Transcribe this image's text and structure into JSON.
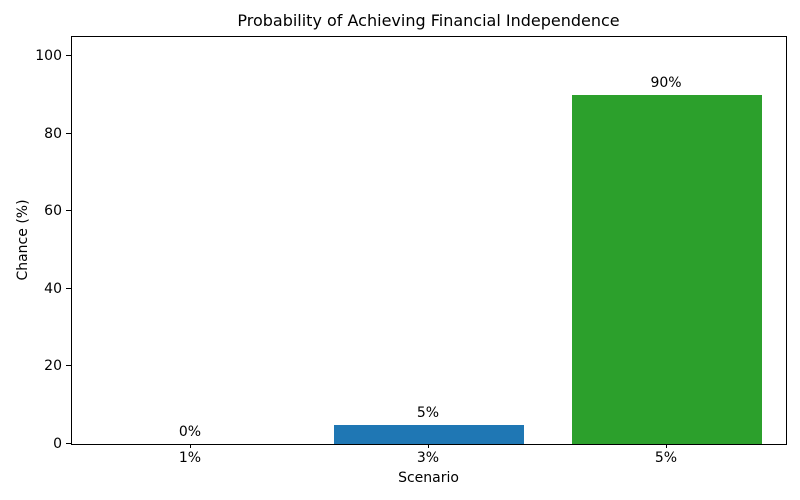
{
  "chart_data": {
    "type": "bar",
    "title": "Probability of Achieving Financial Independence",
    "xlabel": "Scenario",
    "ylabel": "Chance (%)",
    "categories": [
      "1%",
      "3%",
      "5%"
    ],
    "values": [
      0,
      5,
      90
    ],
    "bar_value_labels": [
      "0%",
      "5%",
      "90%"
    ],
    "bar_colors": [
      null,
      "#1f77b4",
      "#2ca02c"
    ],
    "yticks": [
      0,
      20,
      40,
      60,
      80,
      100
    ],
    "ylim": [
      0,
      105
    ],
    "bar_width_fraction": 0.8,
    "grid": false,
    "legend": "none",
    "axis_color": "#000000",
    "background_color": "#ffffff"
  }
}
